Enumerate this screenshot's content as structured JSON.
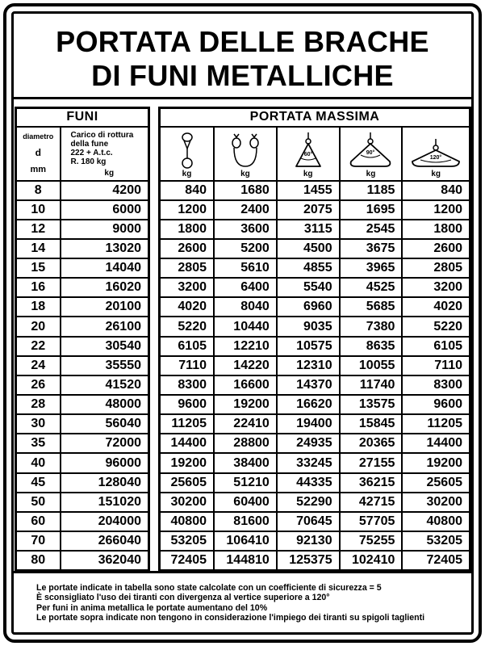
{
  "title": {
    "line1": "PORTATA DELLE BRACHE",
    "line2": "DI FUNI METALLICHE"
  },
  "left": {
    "header": "FUNI",
    "col1": {
      "label": "diametro",
      "symbol": "d",
      "unit": "mm"
    },
    "col2": {
      "line1": "Carico di rottura",
      "line2": "della fune",
      "line3": "222 + A.t.c.",
      "line4": "R. 180 kg",
      "unit": "kg"
    }
  },
  "right": {
    "header": "PORTATA MASSIMA",
    "columns": [
      {
        "icon": "single-sling-icon",
        "unit": "kg"
      },
      {
        "icon": "double-sling-icon",
        "unit": "kg"
      },
      {
        "icon": "sling-60-icon",
        "angle": "60°",
        "unit": "kg"
      },
      {
        "icon": "sling-90-icon",
        "angle": "90°",
        "unit": "kg"
      },
      {
        "icon": "sling-120-icon",
        "angle": "120°",
        "unit": "kg"
      }
    ]
  },
  "rows": [
    [
      "8",
      "4200",
      "840",
      "1680",
      "1455",
      "1185",
      "840"
    ],
    [
      "10",
      "6000",
      "1200",
      "2400",
      "2075",
      "1695",
      "1200"
    ],
    [
      "12",
      "9000",
      "1800",
      "3600",
      "3115",
      "2545",
      "1800"
    ],
    [
      "14",
      "13020",
      "2600",
      "5200",
      "4500",
      "3675",
      "2600"
    ],
    [
      "15",
      "14040",
      "2805",
      "5610",
      "4855",
      "3965",
      "2805"
    ],
    [
      "16",
      "16020",
      "3200",
      "6400",
      "5540",
      "4525",
      "3200"
    ],
    [
      "18",
      "20100",
      "4020",
      "8040",
      "6960",
      "5685",
      "4020"
    ],
    [
      "20",
      "26100",
      "5220",
      "10440",
      "9035",
      "7380",
      "5220"
    ],
    [
      "22",
      "30540",
      "6105",
      "12210",
      "10575",
      "8635",
      "6105"
    ],
    [
      "24",
      "35550",
      "7110",
      "14220",
      "12310",
      "10055",
      "7110"
    ],
    [
      "26",
      "41520",
      "8300",
      "16600",
      "14370",
      "11740",
      "8300"
    ],
    [
      "28",
      "48000",
      "9600",
      "19200",
      "16620",
      "13575",
      "9600"
    ],
    [
      "30",
      "56040",
      "11205",
      "22410",
      "19400",
      "15845",
      "11205"
    ],
    [
      "35",
      "72000",
      "14400",
      "28800",
      "24935",
      "20365",
      "14400"
    ],
    [
      "40",
      "96000",
      "19200",
      "38400",
      "33245",
      "27155",
      "19200"
    ],
    [
      "45",
      "128040",
      "25605",
      "51210",
      "44335",
      "36215",
      "25605"
    ],
    [
      "50",
      "151020",
      "30200",
      "60400",
      "52290",
      "42715",
      "30200"
    ],
    [
      "60",
      "204000",
      "40800",
      "81600",
      "70645",
      "57705",
      "40800"
    ],
    [
      "70",
      "266040",
      "53205",
      "106410",
      "92130",
      "75255",
      "53205"
    ],
    [
      "80",
      "362040",
      "72405",
      "144810",
      "125375",
      "102410",
      "72405"
    ]
  ],
  "notes": [
    "Le portate indicate in tabella sono state calcolate con un coefficiente di sicurezza = 5",
    "È sconsigliato l'uso dei tiranti con divergenza al vertice superiore a 120°",
    "Per funi in anima metallica le portate aumentano del 10%",
    "Le portate sopra indicate non tengono in considerazione l'impiego dei tiranti su spigoli taglienti"
  ]
}
